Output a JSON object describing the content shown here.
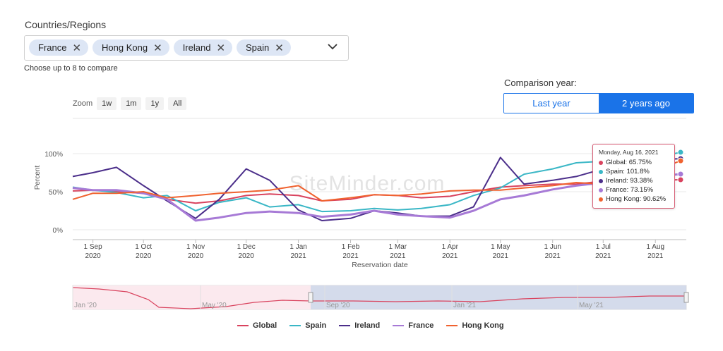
{
  "filter": {
    "label": "Countries/Regions",
    "chips": [
      "France",
      "Hong Kong",
      "Ireland",
      "Spain"
    ],
    "hint": "Choose up to 8 to compare"
  },
  "comparison": {
    "label": "Comparison year:",
    "options": [
      "Last year",
      "2 years ago"
    ],
    "selected": "2 years ago"
  },
  "zoom": {
    "label": "Zoom",
    "buttons": [
      "1w",
      "1m",
      "1y",
      "All"
    ]
  },
  "tooltip": {
    "title": "Monday, Aug 16, 2021",
    "rows": [
      {
        "text": "Global: 65.75%",
        "color": "#d9435e"
      },
      {
        "text": "Spain: 101.8%",
        "color": "#3ab7c6"
      },
      {
        "text": "Ireland: 93.38%",
        "color": "#4b2e8a"
      },
      {
        "text": "France: 73.15%",
        "color": "#a77ad6"
      },
      {
        "text": "Hong Kong: 90.62%",
        "color": "#f0622f"
      }
    ]
  },
  "watermark": "SiteMinder.com",
  "navigator_labels": [
    "Jan '20",
    "May '20",
    "Sep '20",
    "Jan '21",
    "May '21"
  ],
  "chart_data": {
    "type": "line",
    "xlabel": "Reservation date",
    "ylabel": "Percent",
    "ylim": [
      0,
      100
    ],
    "yticks": [
      "0%",
      "50%",
      "100%"
    ],
    "x": [
      "2020-08-20",
      "2020-09-01",
      "2020-09-15",
      "2020-10-01",
      "2020-10-15",
      "2020-11-01",
      "2020-11-15",
      "2020-12-01",
      "2020-12-15",
      "2021-01-01",
      "2021-01-15",
      "2021-02-01",
      "2021-02-15",
      "2021-03-01",
      "2021-03-15",
      "2021-04-01",
      "2021-04-15",
      "2021-05-01",
      "2021-05-15",
      "2021-06-01",
      "2021-06-15",
      "2021-07-01",
      "2021-07-15",
      "2021-08-01",
      "2021-08-16"
    ],
    "xticks": [
      {
        "date": "2020-09-01",
        "label": "1 Sep",
        "year": "2020"
      },
      {
        "date": "2020-10-01",
        "label": "1 Oct",
        "year": "2020"
      },
      {
        "date": "2020-11-01",
        "label": "1 Nov",
        "year": "2020"
      },
      {
        "date": "2020-12-01",
        "label": "1 Dec",
        "year": "2020"
      },
      {
        "date": "2021-01-01",
        "label": "1 Jan",
        "year": "2021"
      },
      {
        "date": "2021-02-01",
        "label": "1 Feb",
        "year": "2021"
      },
      {
        "date": "2021-03-01",
        "label": "1 Mar",
        "year": "2021"
      },
      {
        "date": "2021-04-01",
        "label": "1 Apr",
        "year": "2021"
      },
      {
        "date": "2021-05-01",
        "label": "1 May",
        "year": "2021"
      },
      {
        "date": "2021-06-01",
        "label": "1 Jun",
        "year": "2021"
      },
      {
        "date": "2021-07-01",
        "label": "1 Jul",
        "year": "2021"
      },
      {
        "date": "2021-08-01",
        "label": "1 Aug",
        "year": "2021"
      }
    ],
    "series": [
      {
        "name": "Global",
        "color": "#d9435e",
        "values": [
          51,
          52,
          50,
          48,
          40,
          35,
          38,
          45,
          47,
          45,
          38,
          40,
          46,
          45,
          42,
          44,
          50,
          56,
          58,
          60,
          60,
          64,
          63,
          65,
          65.75
        ]
      },
      {
        "name": "Spain",
        "color": "#3ab7c6",
        "values": [
          56,
          52,
          49,
          42,
          45,
          25,
          36,
          42,
          30,
          33,
          24,
          25,
          28,
          26,
          28,
          33,
          45,
          55,
          73,
          80,
          88,
          90,
          92,
          95,
          101.8
        ]
      },
      {
        "name": "Ireland",
        "color": "#4b2e8a",
        "values": [
          70,
          75,
          82,
          58,
          38,
          15,
          40,
          80,
          65,
          26,
          12,
          15,
          25,
          22,
          18,
          18,
          30,
          95,
          60,
          65,
          70,
          80,
          88,
          92,
          93.38
        ]
      },
      {
        "name": "France",
        "color": "#a77ad6",
        "values": [
          55,
          52,
          52,
          48,
          40,
          12,
          16,
          22,
          24,
          22,
          17,
          20,
          25,
          20,
          18,
          16,
          25,
          40,
          45,
          53,
          58,
          62,
          66,
          70,
          73.15
        ]
      },
      {
        "name": "Hong Kong",
        "color": "#f0622f",
        "values": [
          40,
          48,
          48,
          50,
          42,
          45,
          48,
          50,
          52,
          58,
          38,
          42,
          46,
          45,
          47,
          51,
          52,
          52,
          55,
          58,
          62,
          60,
          68,
          78,
          90.62
        ]
      }
    ]
  }
}
